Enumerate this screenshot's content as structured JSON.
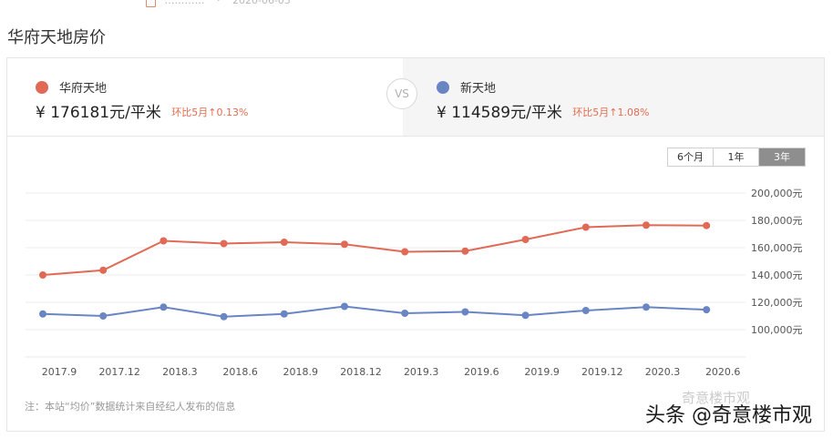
{
  "page": {
    "title": "华府天地房价"
  },
  "top_strip": {
    "text": "…………",
    "date": "2020-06-05"
  },
  "compare": {
    "vs_label": "VS",
    "left": {
      "name": "华府天地",
      "price": "¥ 176181元/平米",
      "change": "环比5月↑0.13%"
    },
    "right": {
      "name": "新天地",
      "price": "¥ 114589元/平米",
      "change": "环比5月↑1.08%"
    }
  },
  "range_tabs": {
    "items": [
      "6个月",
      "1年",
      "3年"
    ],
    "active": "3年"
  },
  "chart_data": {
    "type": "line",
    "x_ticks": [
      "2017.9",
      "2017.12",
      "2018.3",
      "2018.6",
      "2018.9",
      "2018.12",
      "2019.3",
      "2019.6",
      "2019.9",
      "2019.12",
      "2020.3",
      "2020.6"
    ],
    "y_ticks": [
      "100,000元",
      "120,000元",
      "140,000元",
      "160,000元",
      "180,000元",
      "200,000元"
    ],
    "ylim": [
      100000,
      200000
    ],
    "grid": true,
    "series": [
      {
        "name": "华府天地",
        "color": "#e06a56",
        "values": [
          140000,
          143500,
          165000,
          163000,
          164000,
          162500,
          157000,
          157500,
          166000,
          175000,
          176500,
          176181
        ]
      },
      {
        "name": "新天地",
        "color": "#6a85c4",
        "values": [
          111500,
          110000,
          116500,
          109500,
          111500,
          117000,
          112000,
          113000,
          110500,
          114000,
          116500,
          114589
        ]
      }
    ]
  },
  "footnote": "注：本站“均价”数据统计来自经纪人发布的信息",
  "watermark": {
    "text": "头条 @奇意楼市观",
    "faint": "奇意楼市观"
  }
}
